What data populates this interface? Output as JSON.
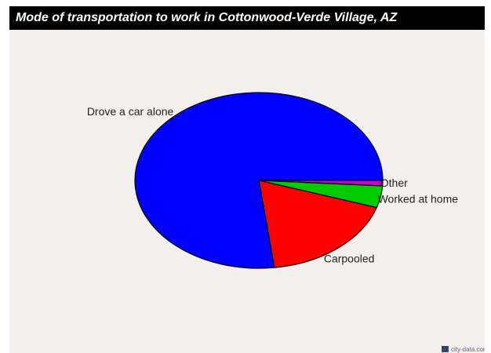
{
  "chart_data": {
    "type": "pie",
    "title": "Mode of transportation to work in Cottonwood-Verde Village, AZ",
    "categories": [
      "Drove a car alone",
      "Carpooled",
      "Worked at home",
      "Other"
    ],
    "values": [
      77,
      18,
      4,
      1
    ],
    "colors": [
      "#0000ff",
      "#ff0000",
      "#00cc00",
      "#cc00cc"
    ],
    "watermark": "city-data.com"
  }
}
